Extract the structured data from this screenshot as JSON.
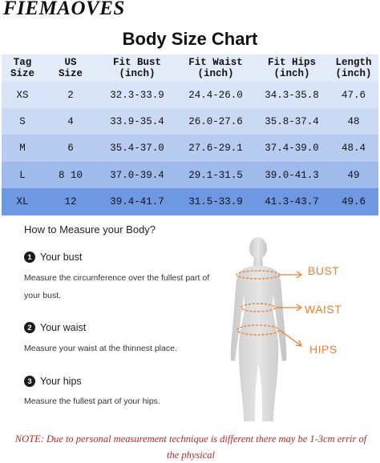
{
  "brand": "FIEMAOVES",
  "title": "Body Size Chart",
  "table": {
    "headers": [
      "Tag\nSize",
      "US\nSize",
      "Fit Bust\n(inch)",
      "Fit Waist\n(inch)",
      "Fit Hips\n(inch)",
      "Length\n(inch)"
    ],
    "rows": [
      [
        "XS",
        "2",
        "32.3-33.9",
        "24.4-26.0",
        "34.3-35.8",
        "47.6"
      ],
      [
        "S",
        "4",
        "33.9-35.4",
        "26.0-27.6",
        "35.8-37.4",
        "48"
      ],
      [
        "M",
        "6",
        "35.4-37.0",
        "27.6-29.1",
        "37.4-39.0",
        "48.4"
      ],
      [
        "L",
        "8 10",
        "37.0-39.4",
        "29.1-31.5",
        "39.0-41.3",
        "49"
      ],
      [
        "XL",
        "12",
        "39.4-41.7",
        "31.5-33.9",
        "41.3-43.7",
        "49.6"
      ]
    ],
    "row_colors": [
      "#d8e4f7",
      "#cadaf4",
      "#b7ccf0",
      "#9fbbec",
      "#6f98e3"
    ],
    "header_color": "#e4ebf8"
  },
  "guide": {
    "title": "How to Measure your Body?",
    "steps": [
      {
        "num": "1",
        "label": "Your bust",
        "desc": "Measure the circumference over the fullest part of your bust."
      },
      {
        "num": "2",
        "label": "Your waist",
        "desc": "Measure your waist at the thinnest place."
      },
      {
        "num": "3",
        "label": "Your hips",
        "desc": "Measure the fullest part of your hips."
      }
    ]
  },
  "figure_labels": {
    "bust": "BUST",
    "waist": "WAIST",
    "hips": "HIPS"
  },
  "accent_color": "#f07e2a",
  "note": "NOTE: Due to personal measurement technique is different there may be 1-3cm errir of the physical"
}
